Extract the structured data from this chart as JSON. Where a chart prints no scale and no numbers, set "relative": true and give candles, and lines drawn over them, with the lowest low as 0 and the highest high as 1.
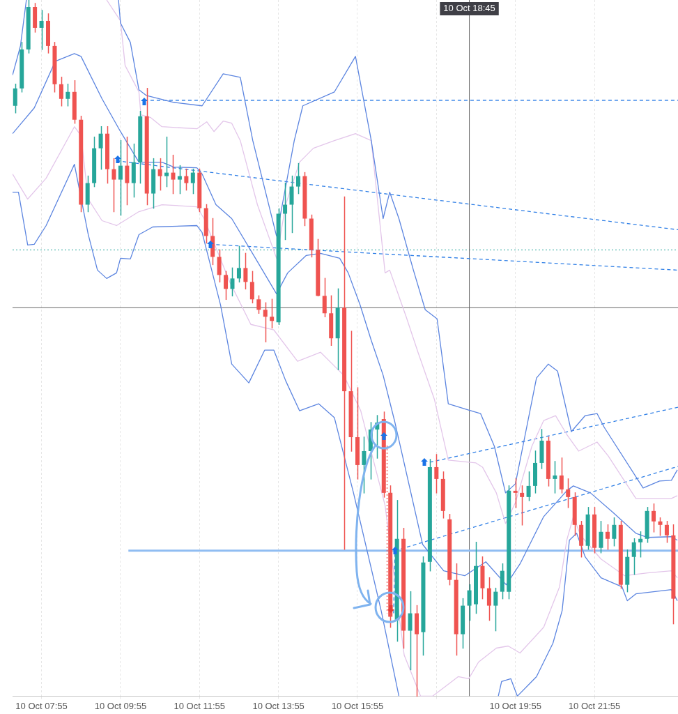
{
  "chart_data": {
    "type": "candlestick",
    "relative": true,
    "grid": "x",
    "xlim": [
      "--10-10T07:11",
      "--10-11T00:02"
    ],
    "xticks": [
      {
        "value": "--10-10T07:55",
        "label": "10 Oct 07:55"
      },
      {
        "value": "--10-10T09:55",
        "label": "10 Oct 09:55"
      },
      {
        "value": "--10-10T11:55",
        "label": "10 Oct 11:55"
      },
      {
        "value": "--10-10T13:55",
        "label": "10 Oct 13:55"
      },
      {
        "value": "--10-10T15:55",
        "label": "10 Oct 15:55"
      },
      {
        "value": "--10-10T17:55",
        "label": null
      },
      {
        "value": "--10-10T19:55",
        "label": "10 Oct 19:55"
      },
      {
        "value": "--10-10T21:55",
        "label": "10 Oct 21:55"
      }
    ],
    "x": [
      "--10-10T07:15",
      "--10-10T07:25",
      "--10-10T07:35",
      "--10-10T07:45",
      "--10-10T07:55",
      "--10-10T08:05",
      "--10-10T08:15",
      "--10-10T08:25",
      "--10-10T08:35",
      "--10-10T08:45",
      "--10-10T08:55",
      "--10-10T09:05",
      "--10-10T09:15",
      "--10-10T09:25",
      "--10-10T09:35",
      "--10-10T09:45",
      "--10-10T09:55",
      "--10-10T10:05",
      "--10-10T10:15",
      "--10-10T10:25",
      "--10-10T10:35",
      "--10-10T10:45",
      "--10-10T10:55",
      "--10-10T11:05",
      "--10-10T11:15",
      "--10-10T11:25",
      "--10-10T11:35",
      "--10-10T11:45",
      "--10-10T11:55",
      "--10-10T12:05",
      "--10-10T12:15",
      "--10-10T12:25",
      "--10-10T12:35",
      "--10-10T12:45",
      "--10-10T12:55",
      "--10-10T13:05",
      "--10-10T13:15",
      "--10-10T13:25",
      "--10-10T13:35",
      "--10-10T13:45",
      "--10-10T13:55",
      "--10-10T14:05",
      "--10-10T14:15",
      "--10-10T14:25",
      "--10-10T14:35",
      "--10-10T14:45",
      "--10-10T14:55",
      "--10-10T15:05",
      "--10-10T15:15",
      "--10-10T15:25",
      "--10-10T15:35",
      "--10-10T15:45",
      "--10-10T15:55",
      "--10-10T16:05",
      "--10-10T16:15",
      "--10-10T16:25",
      "--10-10T16:35",
      "--10-10T16:45",
      "--10-10T16:55",
      "--10-10T17:05",
      "--10-10T17:15",
      "--10-10T17:25",
      "--10-10T17:35",
      "--10-10T17:45",
      "--10-10T17:55",
      "--10-10T18:05",
      "--10-10T18:15",
      "--10-10T18:25",
      "--10-10T18:35",
      "--10-10T18:45",
      "--10-10T18:55",
      "--10-10T19:05",
      "--10-10T19:15",
      "--10-10T19:25",
      "--10-10T19:35",
      "--10-10T19:45",
      "--10-10T19:55",
      "--10-10T20:05",
      "--10-10T20:15",
      "--10-10T20:25",
      "--10-10T20:35",
      "--10-10T20:45",
      "--10-10T20:55",
      "--10-10T21:05",
      "--10-10T21:15",
      "--10-10T21:25",
      "--10-10T21:35",
      "--10-10T21:45",
      "--10-10T21:55",
      "--10-10T22:05",
      "--10-10T22:15",
      "--10-10T22:25",
      "--10-10T22:35",
      "--10-10T22:45",
      "--10-10T22:55",
      "--10-10T23:05",
      "--10-10T23:15",
      "--10-10T23:25",
      "--10-10T23:35",
      "--10-10T23:45",
      "--10-10T23:55"
    ],
    "ohlc": [
      [
        0.848,
        0.879,
        0.838,
        0.873
      ],
      [
        0.873,
        0.939,
        0.868,
        0.929
      ],
      [
        0.929,
        1.0,
        0.924,
        0.99
      ],
      [
        0.99,
        0.995,
        0.954,
        0.96
      ],
      [
        0.96,
        0.985,
        0.929,
        0.97
      ],
      [
        0.97,
        0.98,
        0.924,
        0.934
      ],
      [
        0.934,
        0.939,
        0.868,
        0.879
      ],
      [
        0.879,
        0.889,
        0.848,
        0.858
      ],
      [
        0.858,
        0.879,
        0.848,
        0.868
      ],
      [
        0.868,
        0.884,
        0.823,
        0.828
      ],
      [
        0.828,
        0.833,
        0.696,
        0.706
      ],
      [
        0.706,
        0.747,
        0.696,
        0.737
      ],
      [
        0.737,
        0.803,
        0.732,
        0.787
      ],
      [
        0.787,
        0.818,
        0.757,
        0.808
      ],
      [
        0.808,
        0.818,
        0.737,
        0.757
      ],
      [
        0.757,
        0.772,
        0.696,
        0.742
      ],
      [
        0.742,
        0.798,
        0.691,
        0.762
      ],
      [
        0.762,
        0.803,
        0.706,
        0.737
      ],
      [
        0.737,
        0.793,
        0.717,
        0.767
      ],
      [
        0.767,
        0.84,
        0.737,
        0.833
      ],
      [
        0.833,
        0.873,
        0.706,
        0.722
      ],
      [
        0.722,
        0.772,
        0.701,
        0.757
      ],
      [
        0.757,
        0.772,
        0.727,
        0.747
      ],
      [
        0.747,
        0.803,
        0.732,
        0.752
      ],
      [
        0.752,
        0.777,
        0.722,
        0.742
      ],
      [
        0.742,
        0.762,
        0.722,
        0.747
      ],
      [
        0.747,
        0.757,
        0.727,
        0.737
      ],
      [
        0.737,
        0.757,
        0.722,
        0.752
      ],
      [
        0.752,
        0.757,
        0.696,
        0.701
      ],
      [
        0.701,
        0.706,
        0.651,
        0.661
      ],
      [
        0.661,
        0.686,
        0.62,
        0.631
      ],
      [
        0.631,
        0.641,
        0.595,
        0.605
      ],
      [
        0.605,
        0.61,
        0.57,
        0.585
      ],
      [
        0.585,
        0.615,
        0.575,
        0.6
      ],
      [
        0.6,
        0.646,
        0.595,
        0.615
      ],
      [
        0.615,
        0.636,
        0.585,
        0.595
      ],
      [
        0.595,
        0.61,
        0.565,
        0.57
      ],
      [
        0.57,
        0.575,
        0.55,
        0.555
      ],
      [
        0.555,
        0.565,
        0.509,
        0.545
      ],
      [
        0.545,
        0.57,
        0.529,
        0.539
      ],
      [
        0.537,
        0.7,
        0.534,
        0.693
      ],
      [
        0.693,
        0.737,
        0.656,
        0.706
      ],
      [
        0.706,
        0.747,
        0.666,
        0.732
      ],
      [
        0.732,
        0.765,
        0.722,
        0.747
      ],
      [
        0.747,
        0.752,
        0.676,
        0.686
      ],
      [
        0.686,
        0.691,
        0.631,
        0.641
      ],
      [
        0.641,
        0.656,
        0.575,
        0.575
      ],
      [
        0.575,
        0.6,
        0.545,
        0.55
      ],
      [
        0.55,
        0.575,
        0.504,
        0.514
      ],
      [
        0.514,
        0.585,
        0.469,
        0.558
      ],
      [
        0.558,
        0.717,
        0.211,
        0.438
      ],
      [
        0.438,
        0.524,
        0.352,
        0.372
      ],
      [
        0.372,
        0.443,
        0.312,
        0.332
      ],
      [
        0.332,
        0.372,
        0.292,
        0.352
      ],
      [
        0.352,
        0.393,
        0.312,
        0.383
      ],
      [
        0.383,
        0.403,
        0.342,
        0.393
      ],
      [
        0.398,
        0.408,
        0.286,
        0.292
      ],
      [
        0.292,
        0.302,
        0.099,
        0.114
      ],
      [
        0.109,
        0.281,
        0.079,
        0.226
      ],
      [
        0.226,
        0.241,
        0.069,
        0.094
      ],
      [
        0.094,
        0.15,
        0.038,
        0.119
      ],
      [
        0.119,
        0.13,
        0.0,
        0.089
      ],
      [
        0.092,
        0.2,
        0.059,
        0.192
      ],
      [
        0.193,
        0.34,
        0.18,
        0.329
      ],
      [
        0.329,
        0.347,
        0.292,
        0.312
      ],
      [
        0.312,
        0.322,
        0.256,
        0.266
      ],
      [
        0.254,
        0.261,
        0.16,
        0.167
      ],
      [
        0.167,
        0.19,
        0.059,
        0.089
      ],
      [
        0.089,
        0.14,
        0.069,
        0.13
      ],
      [
        0.13,
        0.16,
        0.109,
        0.152
      ],
      [
        0.132,
        0.221,
        0.119,
        0.187
      ],
      [
        0.187,
        0.2,
        0.14,
        0.155
      ],
      [
        0.155,
        0.17,
        0.109,
        0.13
      ],
      [
        0.13,
        0.155,
        0.094,
        0.15
      ],
      [
        0.15,
        0.19,
        0.14,
        0.18
      ],
      [
        0.15,
        0.302,
        0.14,
        0.295
      ],
      [
        0.295,
        0.312,
        0.271,
        0.292
      ],
      [
        0.292,
        0.302,
        0.246,
        0.286
      ],
      [
        0.286,
        0.322,
        0.281,
        0.302
      ],
      [
        0.302,
        0.352,
        0.292,
        0.335
      ],
      [
        0.335,
        0.383,
        0.327,
        0.367
      ],
      [
        0.367,
        0.372,
        0.302,
        0.312
      ],
      [
        0.312,
        0.337,
        0.292,
        0.317
      ],
      [
        0.317,
        0.342,
        0.292,
        0.297
      ],
      [
        0.297,
        0.312,
        0.271,
        0.286
      ],
      [
        0.286,
        0.292,
        0.231,
        0.246
      ],
      [
        0.246,
        0.251,
        0.2,
        0.216
      ],
      [
        0.216,
        0.271,
        0.211,
        0.261
      ],
      [
        0.261,
        0.271,
        0.206,
        0.213
      ],
      [
        0.213,
        0.251,
        0.206,
        0.236
      ],
      [
        0.236,
        0.246,
        0.211,
        0.226
      ],
      [
        0.226,
        0.256,
        0.216,
        0.246
      ],
      [
        0.246,
        0.251,
        0.155,
        0.16
      ],
      [
        0.16,
        0.21,
        0.15,
        0.2
      ],
      [
        0.2,
        0.226,
        0.175,
        0.221
      ],
      [
        0.221,
        0.236,
        0.2,
        0.226
      ],
      [
        0.226,
        0.271,
        0.221,
        0.266
      ],
      [
        0.266,
        0.276,
        0.236,
        0.251
      ],
      [
        0.251,
        0.256,
        0.231,
        0.246
      ],
      [
        0.246,
        0.251,
        0.221,
        0.231
      ],
      [
        0.231,
        0.246,
        0.104,
        0.14
      ]
    ],
    "colors": [
      "#26a69a",
      "#26a69a",
      "#26a69a",
      "#ef5350",
      "#26a69a",
      "#ef5350",
      "#ef5350",
      "#ef5350",
      "#26a69a",
      "#ef5350",
      "#ef5350",
      "#26a69a",
      "#26a69a",
      "#26a69a",
      "#ef5350",
      "#ef5350",
      "#26a69a",
      "#ef5350",
      "#26a69a",
      "#26a69a",
      "#ef5350",
      "#26a69a",
      "#ef5350",
      "#26a69a",
      "#ef5350",
      "#26a69a",
      "#ef5350",
      "#26a69a",
      "#ef5350",
      "#ef5350",
      "#ef5350",
      "#ef5350",
      "#ef5350",
      "#26a69a",
      "#26a69a",
      "#ef5350",
      "#ef5350",
      "#ef5350",
      "#ef5350",
      "#ef5350",
      "#26a69a",
      "#26a69a",
      "#26a69a",
      "#26a69a",
      "#ef5350",
      "#ef5350",
      "#ef5350",
      "#ef5350",
      "#ef5350",
      "#26a69a",
      "#ef5350",
      "#ef5350",
      "#ef5350",
      "#26a69a",
      "#26a69a",
      "#26a69a",
      "#ef5350",
      "#ef5350",
      "#26a69a",
      "#ef5350",
      "#26a69a",
      "#ef5350",
      "#26a69a",
      "#26a69a",
      "#ef5350",
      "#ef5350",
      "#ef5350",
      "#ef5350",
      "#26a69a",
      "#26a69a",
      "#26a69a",
      "#ef5350",
      "#ef5350",
      "#26a69a",
      "#26a69a",
      "#26a69a",
      "#ef5350",
      "#ef5350",
      "#26a69a",
      "#26a69a",
      "#26a69a",
      "#ef5350",
      "#26a69a",
      "#ef5350",
      "#ef5350",
      "#ef5350",
      "#ef5350",
      "#26a69a",
      "#ef5350",
      "#26a69a",
      "#ef5350",
      "#26a69a",
      "#ef5350",
      "#26a69a",
      "#26a69a",
      "#26a69a",
      "#26a69a",
      "#ef5350",
      "#ef5350",
      "#ef5350",
      "#ef5350"
    ],
    "series": [
      {
        "type": "line",
        "color": "#5c85e0",
        "x": [
          "--10-10T07:11",
          "--10-10T07:23",
          "--10-10T07:32",
          "--10-10T08:00",
          "--10-10T09:52",
          "--10-10T09:55",
          "--10-10T10:10",
          "--10-10T10:23",
          "--10-10T10:34",
          "--10-10T11:16",
          "--10-10T11:59",
          "--10-10T12:31",
          "--10-10T12:57",
          "--10-10T13:16",
          "--10-10T13:52",
          "--10-10T14:19",
          "--10-10T14:32",
          "--10-10T15:20",
          "--10-10T15:52",
          "--10-10T16:16",
          "--10-10T16:34",
          "--10-10T16:44",
          "--10-10T16:58",
          "--10-10T17:20",
          "--10-10T17:38",
          "--10-10T17:56",
          "--10-10T18:13",
          "--10-10T18:44",
          "--10-10T19:02",
          "--10-10T19:23",
          "--10-10T19:40",
          "--10-10T19:55",
          "--10-10T20:27",
          "--10-10T20:45",
          "--10-10T20:59",
          "--10-10T21:20",
          "--10-10T21:41",
          "--10-10T21:59",
          "--10-10T22:10",
          "--10-10T23:09",
          "--10-10T23:34",
          "--10-10T23:52",
          "--10-11T00:01"
        ],
        "values": [
          0.892,
          0.934,
          1.0,
          null,
          1.0,
          0.967,
          0.939,
          0.871,
          0.863,
          0.853,
          0.848,
          0.894,
          0.889,
          0.798,
          0.661,
          0.798,
          0.848,
          0.868,
          0.919,
          0.798,
          0.686,
          0.724,
          0.686,
          0.612,
          0.555,
          0.542,
          0.42,
          0.411,
          0.406,
          0.359,
          0.292,
          0.305,
          0.457,
          0.477,
          0.467,
          0.38,
          0.403,
          0.406,
          0.386,
          0.299,
          0.309,
          0.31,
          0.325
        ]
      },
      {
        "type": "line",
        "color": "#5c85e0",
        "x": [
          "--10-10T07:11",
          "--10-10T07:44",
          "--10-10T08:16",
          "--10-10T08:45",
          "--10-10T08:55",
          "--10-10T09:27",
          "--10-10T09:55",
          "--10-10T10:23",
          "--10-10T10:58",
          "--10-10T11:16",
          "--10-10T11:51",
          "--10-10T11:59",
          "--10-10T12:20",
          "--10-10T12:44",
          "--10-10T13:20",
          "--10-10T13:52",
          "--10-10T14:09",
          "--10-10T14:37",
          "--10-10T14:59",
          "--10-10T15:28",
          "--10-10T15:41",
          "--10-10T15:59",
          "--10-10T16:16",
          "--10-10T16:34",
          "--10-10T16:52",
          "--10-10T17:34",
          "--10-10T18:06",
          "--10-10T18:38",
          "--10-10T19:10",
          "--10-10T19:41",
          "--10-10T20:02",
          "--10-10T20:38",
          "--10-10T21:13",
          "--10-10T21:23",
          "--10-10T21:49",
          "--10-10T22:23",
          "--10-10T22:58",
          "--10-10T23:16",
          "--10-10T23:52",
          "--10-11T00:01"
        ],
        "values": [
          0.808,
          0.845,
          0.912,
          0.923,
          0.919,
          0.858,
          0.811,
          0.767,
          0.767,
          0.76,
          0.759,
          0.75,
          0.706,
          0.686,
          0.629,
          0.578,
          0.608,
          0.633,
          0.636,
          0.629,
          0.608,
          0.562,
          0.511,
          0.461,
          0.393,
          0.218,
          0.18,
          0.173,
          0.193,
          0.16,
          0.19,
          0.258,
          0.295,
          0.302,
          0.292,
          0.264,
          0.234,
          0.228,
          0.229,
          0.224
        ]
      },
      {
        "type": "line",
        "color": "#5c85e0",
        "x": [
          "--10-10T07:11",
          "--10-10T07:20",
          "--10-10T07:34",
          "--10-10T07:44",
          "--10-10T08:02",
          "--10-10T08:45",
          "--10-10T09:06",
          "--10-10T09:20",
          "--10-10T09:34",
          "--10-10T09:49",
          "--10-10T09:55",
          "--10-10T10:10",
          "--10-10T10:23",
          "--10-10T10:44",
          "--10-10T11:51",
          "--10-10T11:59",
          "--10-10T12:09",
          "--10-10T12:27",
          "--10-10T12:44",
          "--10-10T13:10",
          "--10-10T13:34",
          "--10-10T13:48",
          "--10-10T14:06",
          "--10-10T14:27",
          "--10-10T14:56",
          "--10-10T15:20",
          "--10-10T15:49",
          "--10-10T16:31",
          "--10-10T16:58",
          "--10-10T18:00",
          "--10-10T19:29",
          "--10-10T19:34",
          "--10-10T19:48",
          "--10-10T19:58",
          "--10-10T20:27",
          "--10-10T20:52",
          "--10-10T21:06",
          "--10-10T21:17",
          "--10-10T21:28",
          "--10-10T21:41",
          "--10-10T22:05",
          "--10-10T22:37",
          "--10-10T22:45",
          "--10-10T22:58",
          "--10-10T23:52",
          "--10-11T00:01"
        ],
        "values": [
          0.724,
          0.724,
          0.648,
          0.649,
          0.676,
          0.764,
          0.663,
          0.612,
          0.6,
          0.608,
          0.629,
          0.628,
          0.663,
          0.674,
          0.676,
          0.666,
          0.629,
          0.562,
          0.477,
          0.45,
          0.497,
          0.497,
          0.453,
          0.41,
          0.42,
          0.4,
          0.292,
          0.123,
          0.0,
          null,
          0.0,
          0.021,
          0.025,
          0.0,
          0.028,
          0.076,
          0.123,
          0.224,
          0.234,
          0.2,
          0.17,
          0.157,
          0.137,
          0.147,
          0.153,
          0.137
        ]
      },
      {
        "type": "line",
        "color": "#e3c6ea",
        "x": [
          "--10-10T09:34",
          "--10-10T09:55",
          "--10-10T10:02",
          "--10-10T10:23",
          "--10-10T10:26",
          "--10-10T10:41",
          "--10-10T10:58",
          "--10-10T11:51",
          "--10-10T12:06",
          "--10-10T12:17",
          "--10-10T12:31",
          "--10-10T12:44",
          "--10-10T12:57",
          "--10-10T13:23",
          "--10-10T13:52",
          "--10-10T14:06",
          "--10-10T14:27",
          "--10-10T14:48",
          "--10-10T15:20",
          "--10-10T15:52",
          "--10-10T16:16",
          "--10-10T16:37",
          "--10-10T16:44",
          "--10-10T17:09",
          "--10-10T17:27",
          "--10-10T17:52",
          "--10-10T18:13",
          "--10-10T18:55",
          "--10-10T19:05",
          "--10-10T19:26",
          "--10-10T19:40",
          "--10-10T19:55",
          "--10-10T20:20",
          "--10-10T20:38",
          "--10-10T20:56",
          "--10-10T21:13",
          "--10-10T21:31",
          "--10-10T21:59",
          "--10-10T22:16",
          "--10-10T22:58",
          "--10-10T23:52",
          "--10-11T00:01"
        ],
        "values": [
          1.0,
          0.97,
          0.906,
          0.868,
          0.835,
          0.831,
          0.818,
          0.815,
          0.825,
          0.811,
          0.826,
          0.823,
          0.798,
          0.706,
          0.629,
          0.706,
          0.767,
          0.787,
          0.798,
          0.808,
          0.798,
          0.608,
          0.612,
          0.545,
          0.494,
          0.426,
          0.339,
          0.335,
          0.329,
          0.292,
          0.248,
          0.278,
          0.359,
          0.396,
          0.403,
          0.376,
          0.352,
          0.365,
          0.345,
          0.284,
          0.284,
          0.288
        ]
      },
      {
        "type": "line",
        "color": "#e3c6ea",
        "x": [
          "--10-10T07:11",
          "--10-10T07:34",
          "--10-10T08:02",
          "--10-10T08:45",
          "--10-10T08:55",
          "--10-10T09:06",
          "--10-10T09:27",
          "--10-10T09:49",
          "--10-10T10:23",
          "--10-10T10:58",
          "--10-10T11:51",
          "--10-10T12:02",
          "--10-10T12:41",
          "--10-10T13:13",
          "--10-10T13:48",
          "--10-10T14:24",
          "--10-10T14:59",
          "--10-10T15:34",
          "--10-10T16:00",
          "--10-10T16:23",
          "--10-10T16:37",
          "--10-10T17:06",
          "--10-10T17:31",
          "--10-10T17:49",
          "--10-10T18:10",
          "--10-10T18:28",
          "--10-10T18:44",
          "--10-10T18:59",
          "--10-10T19:26",
          "--10-10T19:44",
          "--10-10T20:02",
          "--10-10T20:38",
          "--10-10T21:02",
          "--10-10T21:13",
          "--10-10T21:23",
          "--10-10T21:34",
          "--10-10T22:05",
          "--10-10T22:41",
          "--10-10T23:16",
          "--10-10T23:52",
          "--10-11T00:01"
        ],
        "values": [
          0.75,
          0.714,
          0.744,
          0.818,
          0.805,
          0.714,
          0.683,
          0.676,
          0.696,
          0.706,
          0.703,
          0.686,
          0.595,
          0.534,
          0.526,
          0.481,
          0.494,
          0.461,
          0.41,
          0.325,
          0.274,
          0.059,
          0.0,
          0.0,
          0.015,
          0.028,
          0.025,
          0.049,
          0.069,
          0.072,
          0.062,
          0.099,
          0.157,
          0.224,
          0.258,
          0.231,
          0.197,
          0.173,
          0.177,
          0.18,
          0.17
        ]
      },
      {
        "type": "line",
        "color": "#2f7fe6",
        "line_style": "dashed",
        "x": [
          "--10-10T10:31",
          "--10-11T00:02"
        ],
        "values": [
          0.856,
          0.856
        ]
      },
      {
        "type": "line",
        "color": "#2f7fe6",
        "line_style": "dashed",
        "x": [
          "--10-10T09:49",
          "--10-11T00:02"
        ],
        "values": [
          0.769,
          0.67
        ]
      },
      {
        "type": "line",
        "color": "#2f7fe6",
        "line_style": "dashed",
        "x": [
          "--10-10T12:11",
          "--10-11T00:02"
        ],
        "values": [
          0.649,
          0.612
        ]
      },
      {
        "type": "line",
        "color": "#2f7fe6",
        "line_style": "dashed",
        "x": [
          "--10-10T17:45",
          "--10-11T00:02"
        ],
        "values": [
          0.336,
          0.415
        ]
      },
      {
        "type": "line",
        "color": "#2f7fe6",
        "line_style": "dashed",
        "x": [
          "--10-10T16:52",
          "--10-11T00:02"
        ],
        "values": [
          0.209,
          0.33
        ]
      },
      {
        "type": "line",
        "color": "#ef5350",
        "line_style": "dotted",
        "x": [
          "--10-10T16:40",
          "--10-10T16:40"
        ],
        "values": [
          0.36,
          0.119
        ]
      },
      {
        "type": "line",
        "color": "#2f7fe6",
        "line_style": "dashed",
        "x": [
          "--10-10T16:50",
          "--10-10T16:52"
        ],
        "values": [
          0.119,
          0.209
        ]
      },
      {
        "type": "line",
        "color": "#90bdf2",
        "line_style": "solid",
        "x": [
          "--10-10T10:07",
          "--10-11T00:02"
        ],
        "values": [
          0.209,
          0.209
        ]
      }
    ],
    "ref_lines": [
      {
        "axis": "y",
        "value": 0.641,
        "color": "#26a69a",
        "line_style": "dotted"
      },
      {
        "axis": "y",
        "value": 0.558,
        "color": "#666666"
      },
      {
        "axis": "x",
        "value": "--10-10T18:45",
        "label": "10 Oct 18:45",
        "color": "#666666"
      }
    ]
  }
}
